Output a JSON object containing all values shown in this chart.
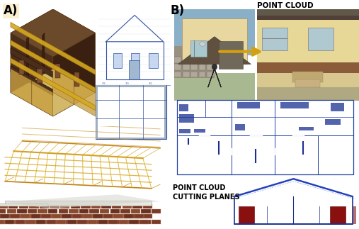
{
  "fig_width": 5.07,
  "fig_height": 3.23,
  "dpi": 100,
  "background_color": "#ffffff",
  "label_A": "A)",
  "label_B": "B)",
  "text_point_cloud": "POINT CLOUD",
  "text_cutting_planes": "POINT CLOUD\nCUTTING PLANES",
  "arrow_color": "#DAA520",
  "label_fontsize": 12,
  "annotation_fontsize": 7.0
}
